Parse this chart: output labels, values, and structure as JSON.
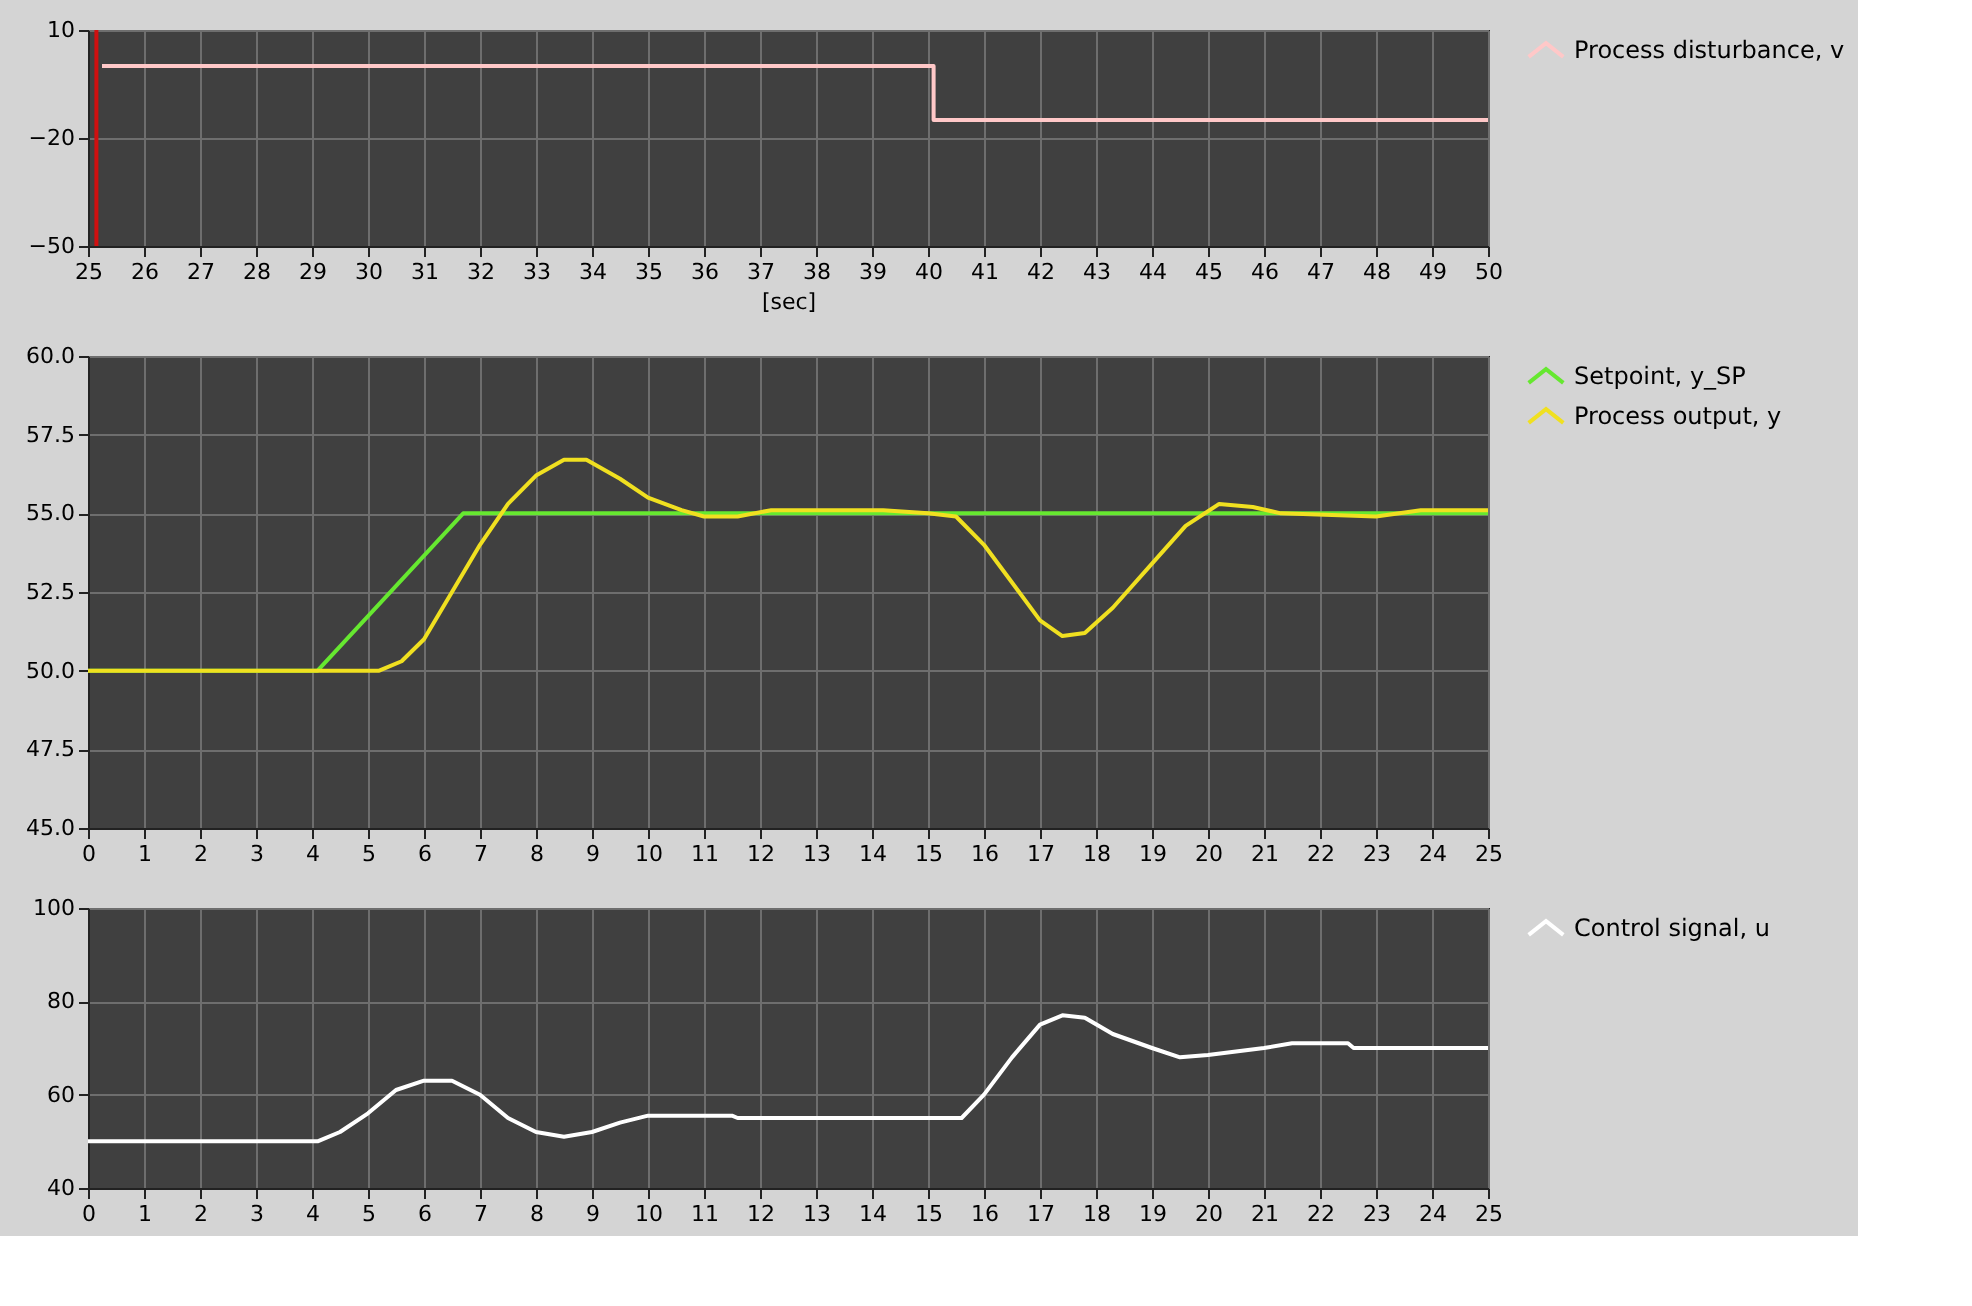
{
  "chart_data": [
    {
      "type": "step",
      "xlabel": "[sec]",
      "x": [
        25.25,
        40.1,
        50
      ],
      "xlim": [
        25,
        50
      ],
      "xticks": [
        25,
        26,
        27,
        28,
        29,
        30,
        31,
        32,
        33,
        34,
        35,
        36,
        37,
        38,
        39,
        40,
        41,
        42,
        43,
        44,
        45,
        46,
        47,
        48,
        49,
        50
      ],
      "ylim": [
        -50,
        10
      ],
      "yticks": [
        -50,
        -20,
        10
      ],
      "grid": true,
      "legend": "right",
      "series": [
        {
          "name": "Process disturbance, v",
          "color": "#ffc8c8",
          "values": [
            0,
            -15,
            -15
          ]
        }
      ],
      "ref_lines": [
        {
          "axis": "x",
          "value": 25.15,
          "color": "#d01010"
        }
      ]
    },
    {
      "type": "line",
      "xlim": [
        0,
        25
      ],
      "xticks": [
        0,
        1,
        2,
        3,
        4,
        5,
        6,
        7,
        8,
        9,
        10,
        11,
        12,
        13,
        14,
        15,
        16,
        17,
        18,
        19,
        20,
        21,
        22,
        23,
        24,
        25
      ],
      "ylim": [
        45,
        60
      ],
      "yticks": [
        {
          "value": 45,
          "label": "45.0"
        },
        {
          "value": 47.5,
          "label": "47.5"
        },
        {
          "value": 50,
          "label": "50.0"
        },
        {
          "value": 52.5,
          "label": "52.5"
        },
        {
          "value": 55,
          "label": "55.0"
        },
        {
          "value": 57.5,
          "label": "57.5"
        },
        {
          "value": 60,
          "label": "60.0"
        }
      ],
      "grid": true,
      "legend": "right",
      "series": [
        {
          "name": "Setpoint, y_SP",
          "color": "#66e830",
          "x": [
            0,
            4.1,
            6.7,
            25
          ],
          "values": [
            50,
            50,
            55,
            55
          ]
        },
        {
          "name": "Process output, y",
          "color": "#f0e020",
          "x": [
            0,
            4.1,
            5.2,
            5.6,
            6,
            6.5,
            7,
            7.5,
            8,
            8.5,
            8.9,
            9.5,
            10,
            10.6,
            11,
            11.6,
            12.2,
            14.2,
            15,
            15.5,
            16,
            16.5,
            17,
            17.4,
            17.8,
            18.3,
            19,
            19.6,
            20.2,
            20.8,
            21.3,
            23,
            23.8,
            25
          ],
          "values": [
            50,
            50,
            50,
            50.3,
            51,
            52.5,
            54,
            55.3,
            56.2,
            56.7,
            56.7,
            56.1,
            55.5,
            55.1,
            54.9,
            54.9,
            55.1,
            55.1,
            55,
            54.9,
            54,
            52.8,
            51.6,
            51.1,
            51.2,
            52,
            53.4,
            54.6,
            55.3,
            55.2,
            55,
            54.9,
            55.1,
            55.1
          ]
        }
      ]
    },
    {
      "type": "line",
      "xlim": [
        0,
        25
      ],
      "xticks": [
        0,
        1,
        2,
        3,
        4,
        5,
        6,
        7,
        8,
        9,
        10,
        11,
        12,
        13,
        14,
        15,
        16,
        17,
        18,
        19,
        20,
        21,
        22,
        23,
        24,
        25
      ],
      "ylim": [
        40,
        100
      ],
      "yticks": [
        40,
        60,
        80,
        100
      ],
      "grid": true,
      "legend": "right",
      "series": [
        {
          "name": "Control signal, u",
          "color": "#ffffff",
          "x": [
            0,
            4.1,
            4.5,
            5,
            5.5,
            6,
            6.5,
            7,
            7.5,
            8,
            8.5,
            9,
            9.5,
            10,
            11.5,
            11.6,
            15.6,
            16,
            16.5,
            17,
            17.4,
            17.8,
            18.3,
            19,
            19.5,
            20,
            21,
            21.5,
            22.5,
            22.6,
            25
          ],
          "values": [
            50,
            50,
            52,
            56,
            61,
            63,
            63,
            60,
            55,
            52,
            51,
            52,
            54,
            55.5,
            55.5,
            55,
            55,
            60,
            68,
            75,
            77,
            76.5,
            73,
            70,
            68,
            68.5,
            70,
            71,
            71,
            70,
            70
          ]
        }
      ]
    }
  ]
}
